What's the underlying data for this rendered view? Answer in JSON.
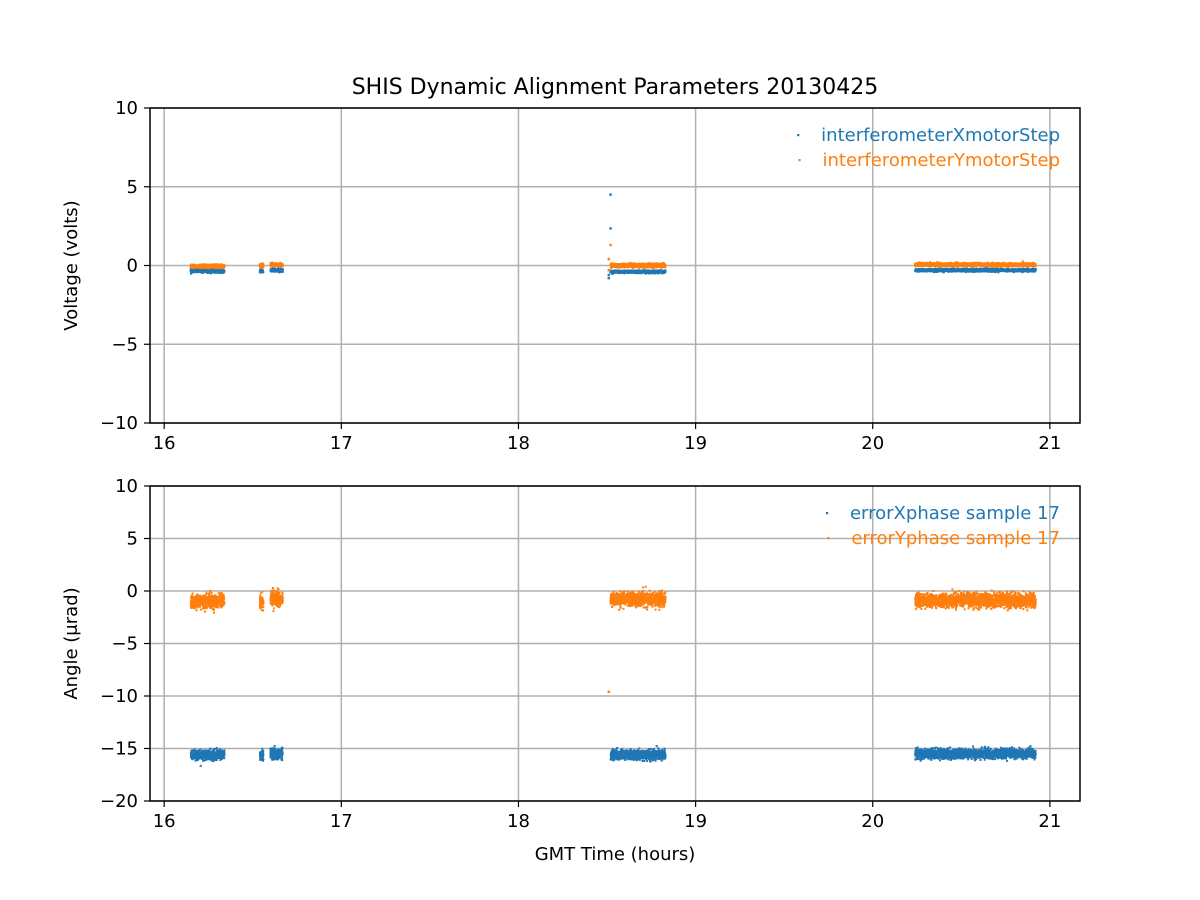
{
  "figure": {
    "title": "SHIS Dynamic Alignment Parameters 20130425"
  },
  "colors": {
    "series_x": "#1f77b4",
    "series_y": "#ff7f0e",
    "grid": "#b0b0b0",
    "axis": "#000000",
    "background": "#ffffff"
  },
  "chart_data": [
    {
      "type": "scatter",
      "title": "SHIS Dynamic Alignment Parameters 20130425",
      "xlabel": "",
      "ylabel": "Voltage (volts)",
      "xlim": [
        15.92,
        21.17
      ],
      "ylim": [
        -10,
        10
      ],
      "xticks": [
        16,
        17,
        18,
        19,
        20,
        21
      ],
      "xtick_labels": [
        "16",
        "17",
        "18",
        "19",
        "20",
        "21"
      ],
      "yticks": [
        10,
        5,
        0,
        -5,
        -10
      ],
      "ytick_labels": [
        "10",
        "5",
        "0",
        "−5",
        "−10"
      ],
      "grid": true,
      "legend_position": "top-right",
      "series": [
        {
          "name": "interferometerXmotorStep",
          "color": "#1f77b4",
          "segments": [
            {
              "x": [
                16.15,
                16.34
              ],
              "center": -0.35,
              "spread": 0.12
            },
            {
              "x": [
                16.54,
                16.56
              ],
              "center": -0.35,
              "spread": 0.12
            },
            {
              "x": [
                16.6,
                16.67
              ],
              "center": -0.3,
              "spread": 0.12
            },
            {
              "x": [
                18.52,
                18.83
              ],
              "center": -0.4,
              "spread": 0.1
            },
            {
              "x": [
                20.24,
                20.92
              ],
              "center": -0.3,
              "spread": 0.1
            }
          ],
          "outliers": [
            {
              "x": 18.52,
              "y": 4.5
            },
            {
              "x": 18.52,
              "y": 2.35
            },
            {
              "x": 18.51,
              "y": -0.6
            },
            {
              "x": 18.51,
              "y": -0.8
            }
          ]
        },
        {
          "name": "interferometerYmotorStep",
          "color": "#ff7f0e",
          "segments": [
            {
              "x": [
                16.15,
                16.34
              ],
              "center": -0.05,
              "spread": 0.12
            },
            {
              "x": [
                16.54,
                16.56
              ],
              "center": 0.0,
              "spread": 0.15
            },
            {
              "x": [
                16.6,
                16.67
              ],
              "center": 0.05,
              "spread": 0.12
            },
            {
              "x": [
                18.52,
                18.83
              ],
              "center": 0.0,
              "spread": 0.15
            },
            {
              "x": [
                20.24,
                20.92
              ],
              "center": 0.05,
              "spread": 0.12
            }
          ],
          "outliers": [
            {
              "x": 18.52,
              "y": 1.3
            },
            {
              "x": 18.51,
              "y": 0.4
            },
            {
              "x": 18.51,
              "y": -0.3
            }
          ]
        }
      ]
    },
    {
      "type": "scatter",
      "title": "",
      "xlabel": "GMT Time (hours)",
      "ylabel": "Angle (μrad)",
      "xlim": [
        15.92,
        21.17
      ],
      "ylim": [
        -20,
        10
      ],
      "xticks": [
        16,
        17,
        18,
        19,
        20,
        21
      ],
      "xtick_labels": [
        "16",
        "17",
        "18",
        "19",
        "20",
        "21"
      ],
      "yticks": [
        10,
        5,
        0,
        -5,
        -10,
        -15,
        -20
      ],
      "ytick_labels": [
        "10",
        "5",
        "0",
        "−5",
        "−10",
        "−15",
        "−20"
      ],
      "grid": true,
      "legend_position": "top-right",
      "series": [
        {
          "name": "errorXphase sample 17",
          "color": "#1f77b4",
          "segments": [
            {
              "x": [
                16.15,
                16.34
              ],
              "center": -15.6,
              "spread": 0.55
            },
            {
              "x": [
                16.54,
                16.56
              ],
              "center": -15.6,
              "spread": 0.6
            },
            {
              "x": [
                16.6,
                16.67
              ],
              "center": -15.5,
              "spread": 0.65
            },
            {
              "x": [
                18.52,
                18.83
              ],
              "center": -15.6,
              "spread": 0.55
            },
            {
              "x": [
                20.24,
                20.92
              ],
              "center": -15.5,
              "spread": 0.55
            }
          ],
          "outliers": []
        },
        {
          "name": "errorYphase sample 17",
          "color": "#ff7f0e",
          "segments": [
            {
              "x": [
                16.15,
                16.34
              ],
              "center": -1.0,
              "spread": 0.8
            },
            {
              "x": [
                16.54,
                16.56
              ],
              "center": -1.0,
              "spread": 0.8
            },
            {
              "x": [
                16.6,
                16.67
              ],
              "center": -0.7,
              "spread": 0.9
            },
            {
              "x": [
                18.52,
                18.83
              ],
              "center": -0.8,
              "spread": 0.8
            },
            {
              "x": [
                20.24,
                20.92
              ],
              "center": -0.9,
              "spread": 0.8
            }
          ],
          "outliers": [
            {
              "x": 18.51,
              "y": -9.6
            }
          ]
        }
      ]
    }
  ]
}
